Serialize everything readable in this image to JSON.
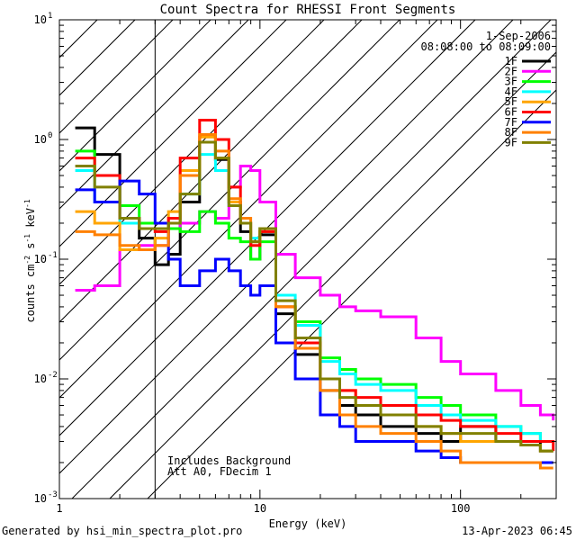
{
  "chart_data": {
    "type": "line",
    "title": "Count Spectra for RHESSI Front Segments",
    "xlabel": "Energy (keV)",
    "ylabel_parts": [
      "counts cm",
      "-2",
      " s",
      "-1",
      " keV",
      "-1"
    ],
    "xscale": "log",
    "yscale": "log",
    "xlim": [
      1,
      300
    ],
    "ylim": [
      0.001,
      10
    ],
    "x_ticks": [
      {
        "value": 1,
        "label": "1"
      },
      {
        "value": 10,
        "label": "10"
      },
      {
        "value": 100,
        "label": "100"
      }
    ],
    "y_ticks": [
      {
        "value": 0.001,
        "base": "10",
        "exp": "-3"
      },
      {
        "value": 0.01,
        "base": "10",
        "exp": "-2"
      },
      {
        "value": 0.1,
        "base": "10",
        "exp": "-1"
      },
      {
        "value": 1,
        "base": "10",
        "exp": "0"
      },
      {
        "value": 10,
        "base": "10",
        "exp": "1"
      }
    ],
    "hatched_region": [
      1,
      3
    ],
    "date": "1-Sep-2006",
    "time_range": "08:08:00 to 08:09:00",
    "annotation_lines": [
      "Includes Background",
      "Att A0, FDecim 1"
    ],
    "series": [
      {
        "name": "1F",
        "color": "#000000",
        "x": [
          1.2,
          1.5,
          2,
          2.5,
          3,
          3.5,
          4,
          5,
          6,
          7,
          8,
          9,
          10,
          12,
          15,
          20,
          25,
          30,
          40,
          60,
          80,
          100,
          150,
          200,
          250,
          290
        ],
        "y": [
          1.25,
          0.75,
          0.22,
          0.15,
          0.09,
          0.11,
          0.3,
          0.95,
          0.68,
          0.3,
          0.17,
          0.1,
          0.16,
          0.035,
          0.016,
          0.008,
          0.006,
          0.005,
          0.004,
          0.0035,
          0.003,
          0.004,
          0.003,
          0.003,
          0.0025,
          0.0025
        ]
      },
      {
        "name": "2F",
        "color": "#ff00ff",
        "x": [
          1.2,
          1.5,
          2,
          2.5,
          3,
          3.5,
          4,
          5,
          6,
          7,
          8,
          9,
          10,
          12,
          15,
          20,
          25,
          30,
          40,
          60,
          80,
          100,
          150,
          200,
          250,
          290
        ],
        "y": [
          0.055,
          0.06,
          0.12,
          0.13,
          0.13,
          0.18,
          0.2,
          0.25,
          0.22,
          0.4,
          0.6,
          0.55,
          0.3,
          0.11,
          0.07,
          0.05,
          0.04,
          0.037,
          0.033,
          0.022,
          0.014,
          0.011,
          0.008,
          0.006,
          0.005,
          0.0045
        ]
      },
      {
        "name": "3F",
        "color": "#00ff00",
        "x": [
          1.2,
          1.5,
          2,
          2.5,
          3,
          3.5,
          4,
          5,
          6,
          7,
          8,
          9,
          10,
          12,
          15,
          20,
          25,
          30,
          40,
          60,
          80,
          100,
          150,
          200,
          250,
          290
        ],
        "y": [
          0.8,
          0.5,
          0.28,
          0.2,
          0.2,
          0.18,
          0.17,
          0.25,
          0.2,
          0.15,
          0.14,
          0.1,
          0.14,
          0.04,
          0.03,
          0.015,
          0.012,
          0.01,
          0.009,
          0.007,
          0.006,
          0.005,
          0.004,
          0.0035,
          0.003,
          0.003
        ]
      },
      {
        "name": "4F",
        "color": "#00ffff",
        "x": [
          1.2,
          1.5,
          2,
          2.5,
          3,
          3.5,
          4,
          5,
          6,
          7,
          8,
          9,
          10,
          12,
          15,
          20,
          25,
          30,
          40,
          60,
          80,
          100,
          150,
          200,
          250,
          290
        ],
        "y": [
          0.55,
          0.3,
          0.2,
          0.18,
          0.18,
          0.2,
          0.35,
          0.75,
          0.55,
          0.28,
          0.2,
          0.15,
          0.18,
          0.05,
          0.028,
          0.014,
          0.011,
          0.009,
          0.008,
          0.006,
          0.005,
          0.0045,
          0.004,
          0.0035,
          0.003,
          0.003
        ]
      },
      {
        "name": "5F",
        "color": "#ffa500",
        "x": [
          1.2,
          1.5,
          2,
          2.5,
          3,
          3.5,
          4,
          5,
          6,
          7,
          8,
          9,
          10,
          12,
          15,
          20,
          25,
          30,
          40,
          60,
          80,
          100,
          150,
          200,
          250,
          290
        ],
        "y": [
          0.25,
          0.2,
          0.12,
          0.12,
          0.15,
          0.25,
          0.55,
          1.05,
          0.7,
          0.3,
          0.2,
          0.14,
          0.17,
          0.04,
          0.02,
          0.01,
          0.008,
          0.006,
          0.005,
          0.004,
          0.0035,
          0.003,
          0.003,
          0.0028,
          0.0025,
          0.0025
        ]
      },
      {
        "name": "6F",
        "color": "#ff0000",
        "x": [
          1.2,
          1.5,
          2,
          2.5,
          3,
          3.5,
          4,
          5,
          6,
          7,
          8,
          9,
          10,
          12,
          15,
          20,
          25,
          30,
          40,
          60,
          80,
          100,
          150,
          200,
          250,
          290
        ],
        "y": [
          0.7,
          0.5,
          0.22,
          0.18,
          0.17,
          0.22,
          0.7,
          1.45,
          1.0,
          0.4,
          0.2,
          0.13,
          0.17,
          0.04,
          0.02,
          0.01,
          0.008,
          0.007,
          0.006,
          0.005,
          0.0045,
          0.004,
          0.0035,
          0.003,
          0.003,
          0.0025
        ]
      },
      {
        "name": "7F",
        "color": "#0000ff",
        "x": [
          1.2,
          1.5,
          2,
          2.5,
          3,
          3.5,
          4,
          5,
          6,
          7,
          8,
          9,
          10,
          12,
          15,
          20,
          25,
          30,
          40,
          60,
          80,
          100,
          150,
          200,
          250,
          290
        ],
        "y": [
          0.38,
          0.3,
          0.45,
          0.35,
          0.2,
          0.1,
          0.06,
          0.08,
          0.1,
          0.08,
          0.06,
          0.05,
          0.06,
          0.02,
          0.01,
          0.005,
          0.004,
          0.003,
          0.003,
          0.0025,
          0.0022,
          0.002,
          0.002,
          0.002,
          0.002,
          0.002
        ]
      },
      {
        "name": "8F",
        "color": "#ff8000",
        "x": [
          1.2,
          1.5,
          2,
          2.5,
          3,
          3.5,
          4,
          5,
          6,
          7,
          8,
          9,
          10,
          12,
          15,
          20,
          25,
          30,
          40,
          60,
          80,
          100,
          150,
          200,
          250,
          290
        ],
        "y": [
          0.17,
          0.16,
          0.13,
          0.12,
          0.13,
          0.2,
          0.5,
          1.1,
          0.8,
          0.32,
          0.22,
          0.14,
          0.18,
          0.04,
          0.018,
          0.008,
          0.005,
          0.004,
          0.0035,
          0.003,
          0.0025,
          0.002,
          0.002,
          0.002,
          0.0018,
          0.0018
        ]
      },
      {
        "name": "9F",
        "color": "#808000",
        "x": [
          1.2,
          1.5,
          2,
          2.5,
          3,
          3.5,
          4,
          5,
          6,
          7,
          8,
          9,
          10,
          12,
          15,
          20,
          25,
          30,
          40,
          60,
          80,
          100,
          150,
          200,
          250,
          290
        ],
        "y": [
          0.6,
          0.4,
          0.22,
          0.18,
          0.18,
          0.2,
          0.35,
          0.95,
          0.7,
          0.28,
          0.2,
          0.14,
          0.18,
          0.045,
          0.022,
          0.01,
          0.007,
          0.006,
          0.005,
          0.004,
          0.0035,
          0.0035,
          0.003,
          0.0028,
          0.0025,
          0.0025
        ]
      }
    ]
  },
  "footer": {
    "left": "Generated by hsi_min_spectra_plot.pro",
    "right": "13-Apr-2023 06:45"
  }
}
